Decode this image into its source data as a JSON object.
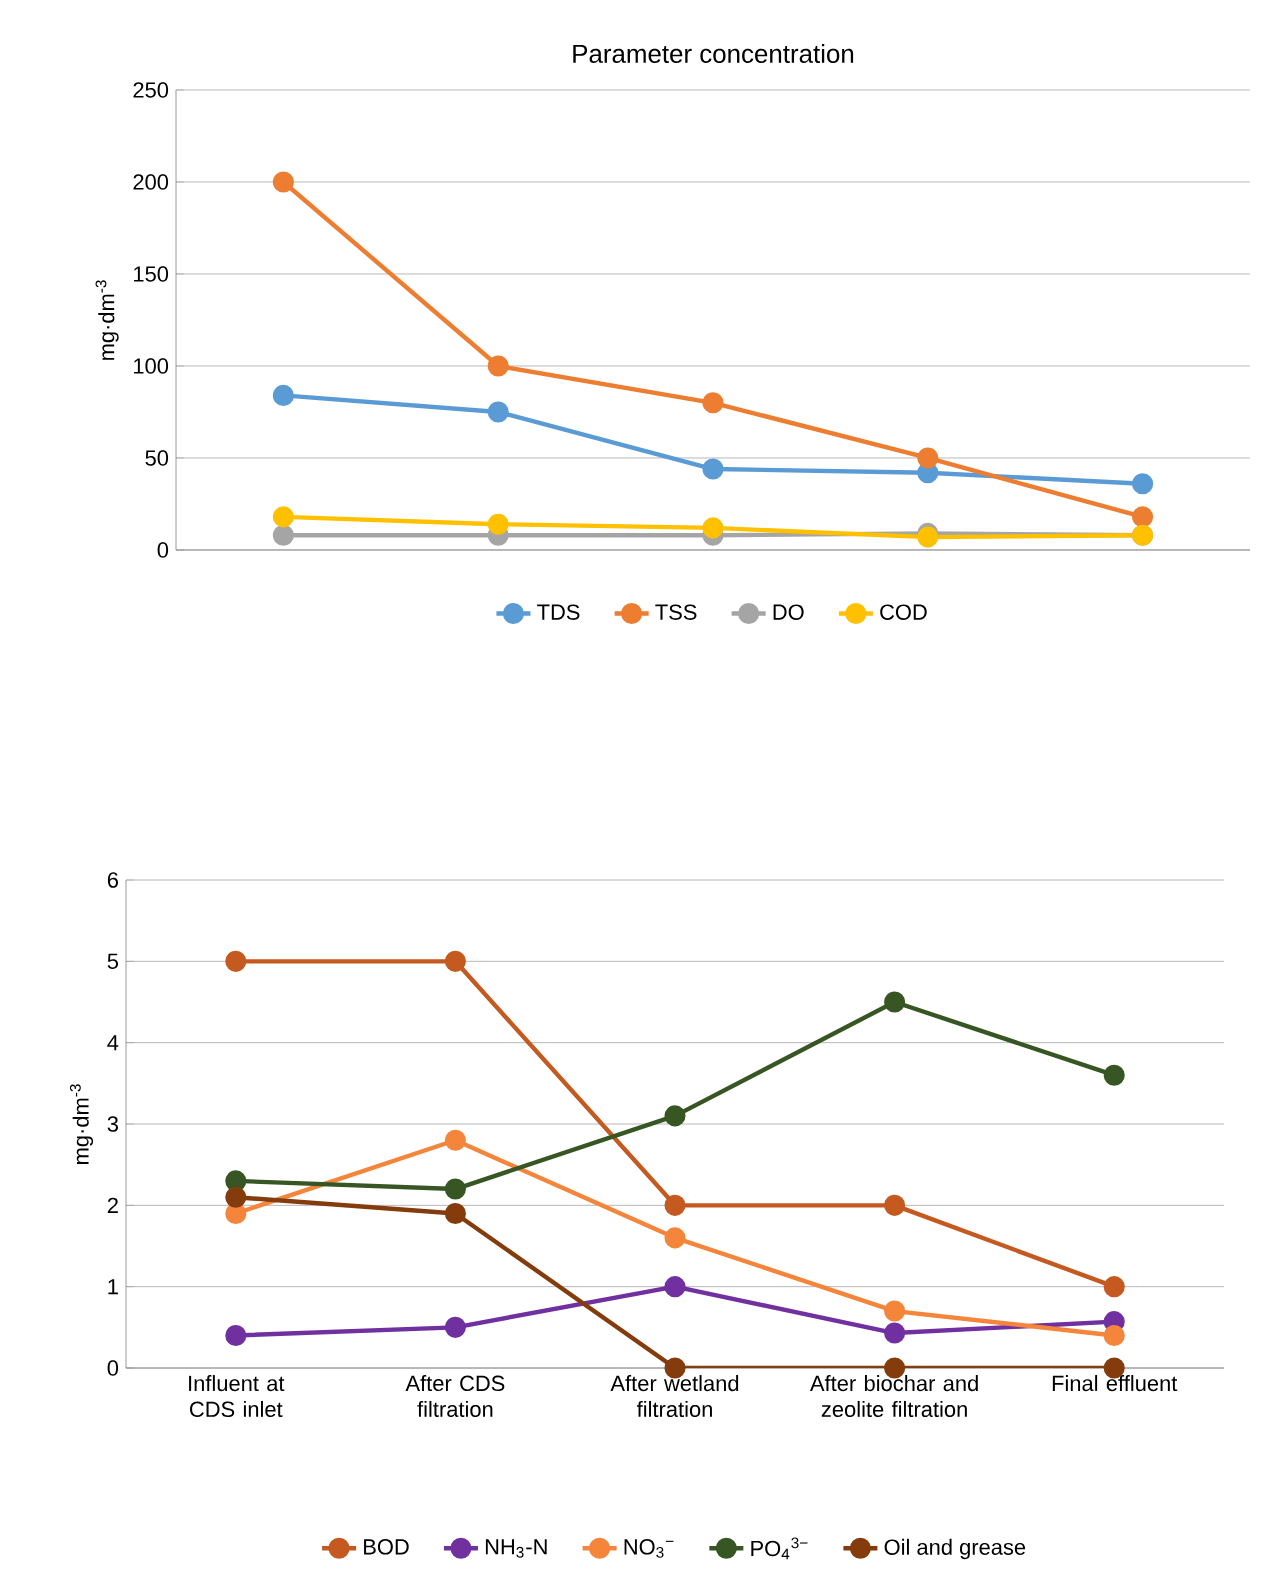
{
  "chart_data": [
    {
      "type": "line",
      "title": "Parameter concentration",
      "ylabel": "mg·dm$^{-3}$",
      "categories": [
        null,
        null,
        null,
        null,
        null
      ],
      "ylim": [
        0,
        250
      ],
      "yticks": [
        0,
        50,
        100,
        150,
        200,
        250
      ],
      "grid": "y",
      "legend": "bottom",
      "marker": "circle",
      "tick_labels": "y",
      "series": [
        {
          "name": "TDS",
          "color": "#5b9bd5",
          "values": [
            84,
            75,
            44,
            42,
            36
          ]
        },
        {
          "name": "TSS",
          "color": "#ed7d31",
          "values": [
            200,
            100,
            80,
            50,
            18
          ]
        },
        {
          "name": "DO",
          "color": "#a5a5a5",
          "values": [
            8,
            8,
            8,
            9,
            8
          ]
        },
        {
          "name": "COD",
          "color": "#ffc000",
          "values": [
            18,
            14,
            12,
            7,
            8
          ]
        }
      ]
    },
    {
      "type": "line",
      "ylabel": "mg·dm$^{-3}$",
      "categories": [
        "Influent at CDS inlet",
        "After CDS filtration",
        "After wetland filtration",
        "After biochar and zeolite filtration",
        "Final effluent"
      ],
      "ylim": [
        0,
        6
      ],
      "yticks": [
        0,
        1,
        2,
        3,
        4,
        5,
        6
      ],
      "grid": "y",
      "legend": "bottom",
      "marker": "circle",
      "series": [
        {
          "name": "BOD",
          "color": "#c55a21",
          "values": [
            5,
            5,
            2,
            2,
            1
          ]
        },
        {
          "name": "NH$_{3}$-N",
          "color": "#7030a0",
          "values": [
            0.4,
            0.5,
            1,
            0.43,
            0.57
          ]
        },
        {
          "name": "NO$_{3}$$^{−}$",
          "color": "#f4853a",
          "values": [
            1.9,
            2.8,
            1.6,
            0.7,
            0.4
          ]
        },
        {
          "name": "PO$_{4}$$^{3−}$",
          "color": "#375623",
          "values": [
            2.3,
            2.2,
            3.1,
            4.5,
            3.6
          ]
        },
        {
          "name": "Oil and grease",
          "color": "#843c0c",
          "values": [
            2.1,
            1.9,
            0,
            0,
            0
          ]
        }
      ]
    }
  ]
}
